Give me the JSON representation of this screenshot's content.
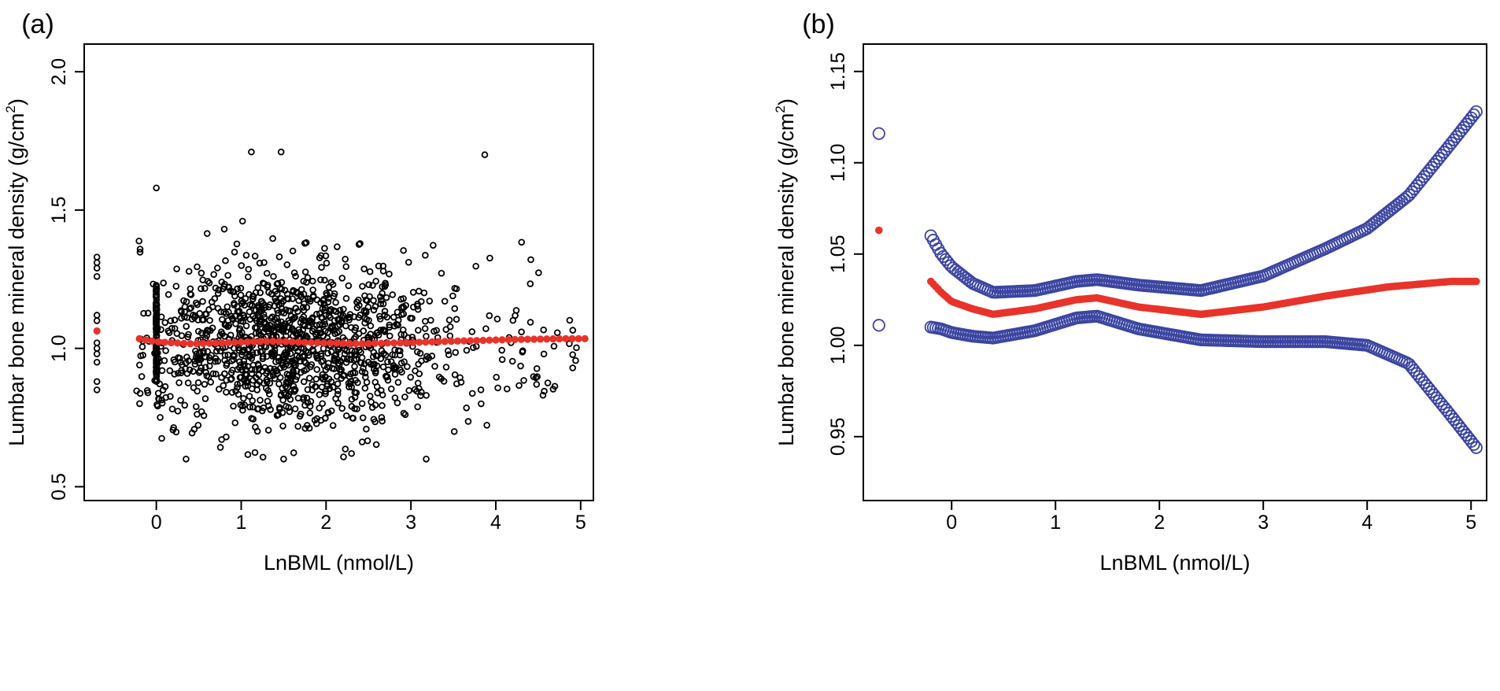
{
  "chart_data": [
    {
      "panel_label": "(a)",
      "type": "scatter",
      "xlabel": "LnBML (nmol/L)",
      "ylabel_main": "Lumbar bone mineral density (g/cm",
      "ylabel_sup": "2",
      "ylabel_close": ")",
      "xlim": [
        -0.85,
        5.15
      ],
      "ylim": [
        0.45,
        2.1
      ],
      "xticks": [
        0,
        1,
        2,
        3,
        4,
        5
      ],
      "yticks": [
        0.5,
        1.0,
        1.5,
        2.0
      ],
      "xtick_labels": [
        "0",
        "1",
        "2",
        "3",
        "4",
        "5"
      ],
      "ytick_labels": [
        "0.5",
        "1.0",
        "1.5",
        "2.0"
      ],
      "series": [
        {
          "name": "observations",
          "marker": "open-circle",
          "color": "#000000",
          "n_points": 1500,
          "x_range": [
            -0.7,
            5.05
          ],
          "y_center": 1.02,
          "y_range": [
            0.59,
            1.71
          ],
          "notable_points": [
            {
              "x": 1.12,
              "y": 1.71
            },
            {
              "x": 1.47,
              "y": 1.71
            },
            {
              "x": 3.87,
              "y": 1.7
            },
            {
              "x": 0.0,
              "y": 1.58
            },
            {
              "x": 0.35,
              "y": 0.6
            },
            {
              "x": 3.18,
              "y": 0.6
            },
            {
              "x": 1.5,
              "y": 0.6
            },
            {
              "x": 2.3,
              "y": 0.62
            }
          ]
        },
        {
          "name": "smooth fit",
          "marker": "filled-circle",
          "color": "#e8332b",
          "x": [
            -0.7,
            -0.2,
            -0.1,
            0.0,
            0.2,
            0.4,
            0.8,
            1.2,
            1.4,
            1.8,
            2.4,
            3.0,
            3.6,
            4.2,
            4.8,
            5.05
          ],
          "y": [
            1.063,
            1.035,
            1.029,
            1.024,
            1.02,
            1.017,
            1.02,
            1.025,
            1.026,
            1.021,
            1.017,
            1.021,
            1.027,
            1.032,
            1.035,
            1.035
          ]
        }
      ]
    },
    {
      "panel_label": "(b)",
      "type": "scatter",
      "xlabel": "LnBML (nmol/L)",
      "ylabel_main": "Lumbar bone mineral density (g/cm",
      "ylabel_sup": "2",
      "ylabel_close": ")",
      "xlim": [
        -0.85,
        5.15
      ],
      "ylim": [
        0.915,
        1.165
      ],
      "xticks": [
        0,
        1,
        2,
        3,
        4,
        5
      ],
      "yticks": [
        0.95,
        1.0,
        1.05,
        1.1,
        1.15
      ],
      "xtick_labels": [
        "0",
        "1",
        "2",
        "3",
        "4",
        "5"
      ],
      "ytick_labels": [
        "0.95",
        "1.00",
        "1.05",
        "1.10",
        "1.15"
      ],
      "series": [
        {
          "name": "fitted curve",
          "marker": "filled-circle",
          "color": "#e8332b",
          "x": [
            -0.7,
            -0.2,
            -0.1,
            0.0,
            0.2,
            0.4,
            0.8,
            1.2,
            1.4,
            1.8,
            2.4,
            3.0,
            3.6,
            4.2,
            4.8,
            5.05
          ],
          "y": [
            1.063,
            1.035,
            1.029,
            1.024,
            1.02,
            1.017,
            1.02,
            1.025,
            1.026,
            1.021,
            1.017,
            1.021,
            1.027,
            1.032,
            1.035,
            1.035
          ]
        },
        {
          "name": "upper 95% CI",
          "marker": "open-circle",
          "color": "#3a44a0",
          "x": [
            -0.7,
            -0.2,
            -0.1,
            0.0,
            0.2,
            0.4,
            0.8,
            1.2,
            1.4,
            1.8,
            2.4,
            3.0,
            3.6,
            4.0,
            4.4,
            4.8,
            5.05
          ],
          "y": [
            1.116,
            1.06,
            1.05,
            1.043,
            1.034,
            1.029,
            1.03,
            1.035,
            1.036,
            1.033,
            1.03,
            1.038,
            1.053,
            1.064,
            1.082,
            1.11,
            1.128
          ]
        },
        {
          "name": "lower 95% CI",
          "marker": "open-circle",
          "color": "#3a44a0",
          "x": [
            -0.7,
            -0.2,
            -0.1,
            0.0,
            0.2,
            0.4,
            0.8,
            1.2,
            1.4,
            1.8,
            2.4,
            3.0,
            3.6,
            4.0,
            4.4,
            4.8,
            5.05
          ],
          "y": [
            1.011,
            1.01,
            1.009,
            1.007,
            1.005,
            1.004,
            1.008,
            1.015,
            1.016,
            1.009,
            1.003,
            1.002,
            1.002,
            1.0,
            0.99,
            0.962,
            0.944
          ]
        }
      ]
    }
  ]
}
